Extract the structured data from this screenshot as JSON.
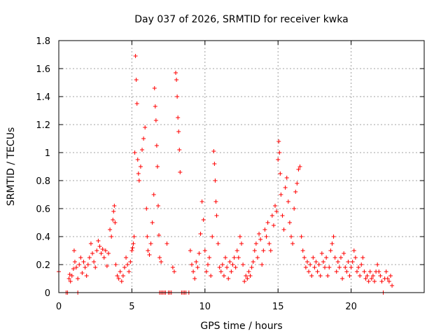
{
  "chart_data": {
    "type": "scatter",
    "title": "Day 037 of 2026, SRMTID for receiver kwka",
    "xlabel": "GPS time / hours",
    "ylabel": "SRMTID / TECUs",
    "xlim": [
      0,
      25
    ],
    "ylim": [
      0,
      1.8
    ],
    "xticks": [
      0,
      5,
      10,
      15,
      20
    ],
    "yticks": [
      0,
      0.2,
      0.4,
      0.6,
      0.8,
      1,
      1.2,
      1.4,
      1.6,
      1.8
    ],
    "xtick_labels": [
      "0",
      "5",
      "10",
      "15",
      "20"
    ],
    "ytick_labels": [
      "0",
      "0.2",
      "0.4",
      "0.6",
      "0.8",
      "1",
      "1.2",
      "1.4",
      "1.6",
      "1.8"
    ],
    "grid": true,
    "marker": "+",
    "color": "#ff0000",
    "series": [
      {
        "name": "kwka",
        "points": [
          [
            0.0,
            0.15
          ],
          [
            0.5,
            0.0
          ],
          [
            0.6,
            0.0
          ],
          [
            0.7,
            0.1
          ],
          [
            0.75,
            0.13
          ],
          [
            0.8,
            0.08
          ],
          [
            0.9,
            0.12
          ],
          [
            1.0,
            0.17
          ],
          [
            1.05,
            0.3
          ],
          [
            1.1,
            0.22
          ],
          [
            1.2,
            0.18
          ],
          [
            1.3,
            0.1
          ],
          [
            1.3,
            0.0
          ],
          [
            1.4,
            0.2
          ],
          [
            1.5,
            0.25
          ],
          [
            1.6,
            0.14
          ],
          [
            1.7,
            0.22
          ],
          [
            1.8,
            0.18
          ],
          [
            1.9,
            0.12
          ],
          [
            2.0,
            0.2
          ],
          [
            2.1,
            0.25
          ],
          [
            2.2,
            0.35
          ],
          [
            2.3,
            0.28
          ],
          [
            2.4,
            0.22
          ],
          [
            2.5,
            0.18
          ],
          [
            2.6,
            0.3
          ],
          [
            2.7,
            0.37
          ],
          [
            2.8,
            0.33
          ],
          [
            2.9,
            0.28
          ],
          [
            3.0,
            0.31
          ],
          [
            3.1,
            0.25
          ],
          [
            3.2,
            0.3
          ],
          [
            3.3,
            0.19
          ],
          [
            3.4,
            0.28
          ],
          [
            3.5,
            0.45
          ],
          [
            3.6,
            0.4
          ],
          [
            3.7,
            0.52
          ],
          [
            3.75,
            0.58
          ],
          [
            3.8,
            0.62
          ],
          [
            3.85,
            0.5
          ],
          [
            3.9,
            0.2
          ],
          [
            4.0,
            0.12
          ],
          [
            4.1,
            0.1
          ],
          [
            4.2,
            0.15
          ],
          [
            4.3,
            0.08
          ],
          [
            4.4,
            0.12
          ],
          [
            4.5,
            0.18
          ],
          [
            4.6,
            0.25
          ],
          [
            4.7,
            0.2
          ],
          [
            4.8,
            0.15
          ],
          [
            4.9,
            0.22
          ],
          [
            5.0,
            0.3
          ],
          [
            5.05,
            0.32
          ],
          [
            5.1,
            0.35
          ],
          [
            5.15,
            0.4
          ],
          [
            5.2,
            1.0
          ],
          [
            5.25,
            1.69
          ],
          [
            5.3,
            1.52
          ],
          [
            5.35,
            1.35
          ],
          [
            5.4,
            0.95
          ],
          [
            5.45,
            0.85
          ],
          [
            5.5,
            0.8
          ],
          [
            5.6,
            0.9
          ],
          [
            5.7,
            1.02
          ],
          [
            5.8,
            1.1
          ],
          [
            5.9,
            1.18
          ],
          [
            6.0,
            0.6
          ],
          [
            6.05,
            0.4
          ],
          [
            6.1,
            0.3
          ],
          [
            6.2,
            0.27
          ],
          [
            6.3,
            0.35
          ],
          [
            6.4,
            0.5
          ],
          [
            6.5,
            0.7
          ],
          [
            6.55,
            1.46
          ],
          [
            6.6,
            1.33
          ],
          [
            6.65,
            1.23
          ],
          [
            6.7,
            1.05
          ],
          [
            6.75,
            0.9
          ],
          [
            6.8,
            0.62
          ],
          [
            6.85,
            0.41
          ],
          [
            6.9,
            0.25
          ],
          [
            6.9,
            0.0
          ],
          [
            7.0,
            0.22
          ],
          [
            7.0,
            0.0
          ],
          [
            7.1,
            0.0
          ],
          [
            7.2,
            0.0
          ],
          [
            7.3,
            0.0
          ],
          [
            7.4,
            0.35
          ],
          [
            7.5,
            0.0
          ],
          [
            7.6,
            0.0
          ],
          [
            7.7,
            0.0
          ],
          [
            7.8,
            0.18
          ],
          [
            7.9,
            0.15
          ],
          [
            8.0,
            1.57
          ],
          [
            8.05,
            1.52
          ],
          [
            8.1,
            1.4
          ],
          [
            8.15,
            1.25
          ],
          [
            8.2,
            1.15
          ],
          [
            8.25,
            1.02
          ],
          [
            8.3,
            0.86
          ],
          [
            8.4,
            0.0
          ],
          [
            8.5,
            0.0
          ],
          [
            8.6,
            0.0
          ],
          [
            8.7,
            0.0
          ],
          [
            8.9,
            0.0
          ],
          [
            9.0,
            0.3
          ],
          [
            9.1,
            0.2
          ],
          [
            9.2,
            0.15
          ],
          [
            9.3,
            0.1
          ],
          [
            9.4,
            0.22
          ],
          [
            9.5,
            0.18
          ],
          [
            9.6,
            0.28
          ],
          [
            9.7,
            0.42
          ],
          [
            9.8,
            0.65
          ],
          [
            9.9,
            0.52
          ],
          [
            10.0,
            0.3
          ],
          [
            10.1,
            0.15
          ],
          [
            10.2,
            0.2
          ],
          [
            10.3,
            0.25
          ],
          [
            10.4,
            0.12
          ],
          [
            10.5,
            0.4
          ],
          [
            10.6,
            1.01
          ],
          [
            10.65,
            0.92
          ],
          [
            10.7,
            0.8
          ],
          [
            10.75,
            0.65
          ],
          [
            10.8,
            0.55
          ],
          [
            10.9,
            0.35
          ],
          [
            11.0,
            0.18
          ],
          [
            11.1,
            0.15
          ],
          [
            11.2,
            0.2
          ],
          [
            11.3,
            0.12
          ],
          [
            11.4,
            0.25
          ],
          [
            11.5,
            0.18
          ],
          [
            11.6,
            0.1
          ],
          [
            11.7,
            0.22
          ],
          [
            11.8,
            0.15
          ],
          [
            11.9,
            0.2
          ],
          [
            12.0,
            0.25
          ],
          [
            12.1,
            0.18
          ],
          [
            12.2,
            0.3
          ],
          [
            12.3,
            0.25
          ],
          [
            12.4,
            0.4
          ],
          [
            12.5,
            0.35
          ],
          [
            12.6,
            0.2
          ],
          [
            12.7,
            0.08
          ],
          [
            12.8,
            0.12
          ],
          [
            12.9,
            0.1
          ],
          [
            13.0,
            0.15
          ],
          [
            13.1,
            0.12
          ],
          [
            13.2,
            0.18
          ],
          [
            13.3,
            0.22
          ],
          [
            13.4,
            0.3
          ],
          [
            13.5,
            0.35
          ],
          [
            13.6,
            0.25
          ],
          [
            13.7,
            0.42
          ],
          [
            13.8,
            0.38
          ],
          [
            13.9,
            0.2
          ],
          [
            14.0,
            0.3
          ],
          [
            14.1,
            0.45
          ],
          [
            14.2,
            0.4
          ],
          [
            14.3,
            0.5
          ],
          [
            14.4,
            0.35
          ],
          [
            14.5,
            0.3
          ],
          [
            14.6,
            0.55
          ],
          [
            14.7,
            0.48
          ],
          [
            14.8,
            0.62
          ],
          [
            14.9,
            0.58
          ],
          [
            15.0,
            0.95
          ],
          [
            15.05,
            1.08
          ],
          [
            15.1,
            1.0
          ],
          [
            15.15,
            0.85
          ],
          [
            15.2,
            0.7
          ],
          [
            15.3,
            0.55
          ],
          [
            15.4,
            0.45
          ],
          [
            15.5,
            0.75
          ],
          [
            15.6,
            0.82
          ],
          [
            15.7,
            0.65
          ],
          [
            15.8,
            0.5
          ],
          [
            15.9,
            0.4
          ],
          [
            16.0,
            0.35
          ],
          [
            16.1,
            0.6
          ],
          [
            16.2,
            0.72
          ],
          [
            16.3,
            0.78
          ],
          [
            16.4,
            0.88
          ],
          [
            16.5,
            0.9
          ],
          [
            16.6,
            0.4
          ],
          [
            16.7,
            0.3
          ],
          [
            16.8,
            0.25
          ],
          [
            16.9,
            0.18
          ],
          [
            17.0,
            0.22
          ],
          [
            17.1,
            0.15
          ],
          [
            17.2,
            0.2
          ],
          [
            17.3,
            0.12
          ],
          [
            17.4,
            0.25
          ],
          [
            17.5,
            0.18
          ],
          [
            17.6,
            0.22
          ],
          [
            17.7,
            0.15
          ],
          [
            17.8,
            0.2
          ],
          [
            17.9,
            0.12
          ],
          [
            18.0,
            0.28
          ],
          [
            18.1,
            0.22
          ],
          [
            18.2,
            0.18
          ],
          [
            18.3,
            0.25
          ],
          [
            18.4,
            0.12
          ],
          [
            18.5,
            0.18
          ],
          [
            18.6,
            0.3
          ],
          [
            18.7,
            0.35
          ],
          [
            18.8,
            0.4
          ],
          [
            18.9,
            0.25
          ],
          [
            19.0,
            0.15
          ],
          [
            19.1,
            0.22
          ],
          [
            19.2,
            0.18
          ],
          [
            19.3,
            0.25
          ],
          [
            19.4,
            0.1
          ],
          [
            19.5,
            0.28
          ],
          [
            19.6,
            0.18
          ],
          [
            19.7,
            0.15
          ],
          [
            19.8,
            0.22
          ],
          [
            19.9,
            0.12
          ],
          [
            20.0,
            0.18
          ],
          [
            20.1,
            0.22
          ],
          [
            20.2,
            0.3
          ],
          [
            20.3,
            0.25
          ],
          [
            20.4,
            0.15
          ],
          [
            20.5,
            0.18
          ],
          [
            20.6,
            0.12
          ],
          [
            20.7,
            0.2
          ],
          [
            20.8,
            0.25
          ],
          [
            20.9,
            0.15
          ],
          [
            21.0,
            0.1
          ],
          [
            21.1,
            0.12
          ],
          [
            21.2,
            0.08
          ],
          [
            21.3,
            0.15
          ],
          [
            21.4,
            0.1
          ],
          [
            21.5,
            0.12
          ],
          [
            21.6,
            0.08
          ],
          [
            21.7,
            0.15
          ],
          [
            21.8,
            0.2
          ],
          [
            21.9,
            0.15
          ],
          [
            22.0,
            0.12
          ],
          [
            22.1,
            0.08
          ],
          [
            22.2,
            0.0
          ],
          [
            22.3,
            0.1
          ],
          [
            22.4,
            0.15
          ],
          [
            22.5,
            0.1
          ],
          [
            22.6,
            0.08
          ],
          [
            22.7,
            0.12
          ],
          [
            22.8,
            0.05
          ]
        ]
      }
    ]
  }
}
